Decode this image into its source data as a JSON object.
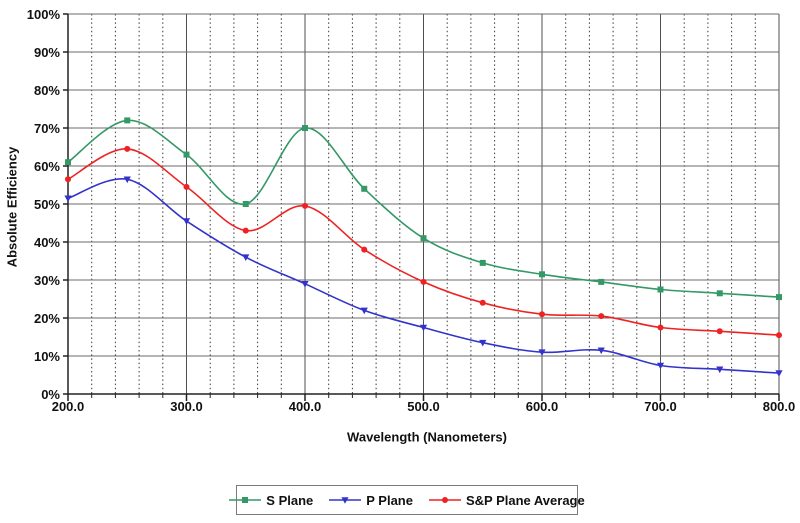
{
  "chart_data": {
    "type": "line",
    "title": "",
    "xlabel": "Wavelength (Nanometers)",
    "ylabel": "Absolute Efficiency",
    "xlim": [
      200,
      800
    ],
    "ylim": [
      0,
      100
    ],
    "x_ticks": [
      200,
      300,
      400,
      500,
      600,
      700,
      800
    ],
    "x_tick_decimals": 1,
    "x_minor_step": 20,
    "y_ticks": [
      0,
      10,
      20,
      30,
      40,
      50,
      60,
      70,
      80,
      90,
      100
    ],
    "y_tick_suffix": "%",
    "grid": {
      "horizontal_major": true,
      "vertical_major": true,
      "vertical_minor_dotted": true
    },
    "grid_colors": {
      "axis": "#222222",
      "major_h": "#6b6b6b",
      "major_v": "#4f4f4f",
      "minor_v": "#3a3a3a"
    },
    "legend_position": "bottom",
    "x": [
      200,
      250,
      300,
      350,
      400,
      450,
      500,
      550,
      600,
      650,
      700,
      750,
      800
    ],
    "series": [
      {
        "name": "S Plane",
        "color": "#339966",
        "marker": "square",
        "values": [
          61,
          72,
          63,
          50,
          70,
          54,
          41,
          34.5,
          31.5,
          29.5,
          27.5,
          26.5,
          25.5
        ]
      },
      {
        "name": "P Plane",
        "color": "#3333CC",
        "marker": "triangle-down",
        "values": [
          51.5,
          56.5,
          45.5,
          36,
          29,
          22,
          17.5,
          13.5,
          11,
          11.5,
          7.5,
          6.5,
          5.5
        ]
      },
      {
        "name": "S&P Plane Average",
        "color": "#EE2222",
        "marker": "circle",
        "values": [
          56.5,
          64.5,
          54.5,
          43,
          49.5,
          38,
          29.5,
          24,
          21,
          20.5,
          17.5,
          16.5,
          15.5
        ]
      }
    ]
  }
}
